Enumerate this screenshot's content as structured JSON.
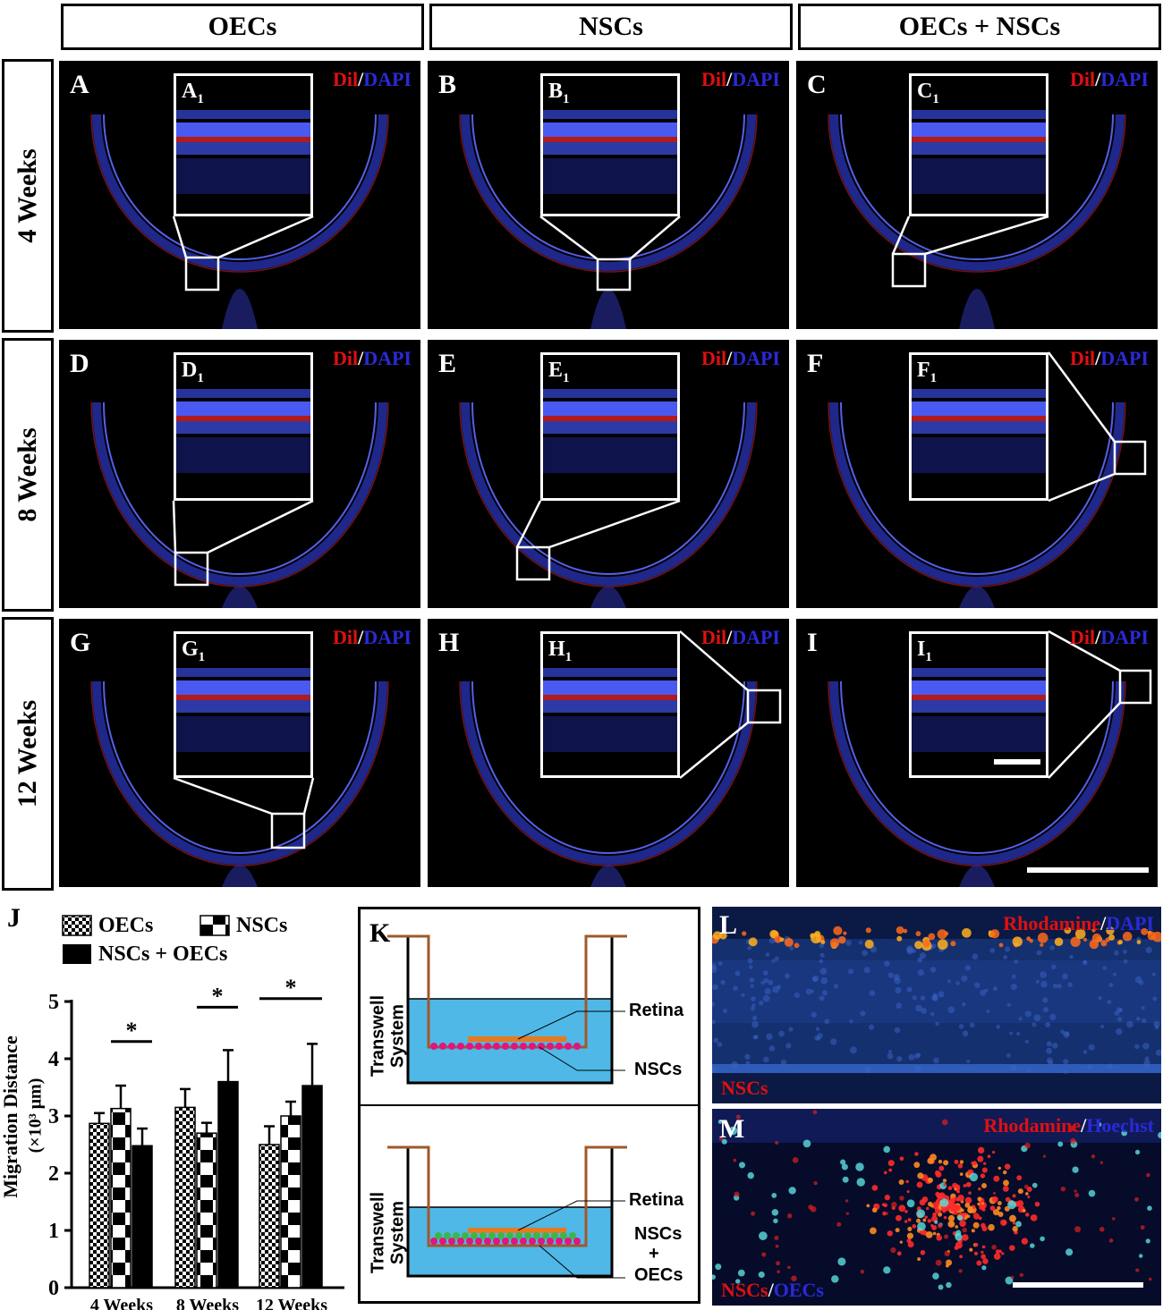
{
  "columns": [
    "OECs",
    "NSCs",
    "OECs + NSCs"
  ],
  "rows": [
    "4 Weeks",
    "8 Weeks",
    "12 Weeks"
  ],
  "stain": {
    "red": "Dil",
    "sep": "/",
    "blue": "DAPI"
  },
  "panels": [
    {
      "label": "A",
      "inset": "A",
      "sub": "1"
    },
    {
      "label": "B",
      "inset": "B",
      "sub": "1"
    },
    {
      "label": "C",
      "inset": "C",
      "sub": "1"
    },
    {
      "label": "D",
      "inset": "D",
      "sub": "1"
    },
    {
      "label": "E",
      "inset": "E",
      "sub": "1"
    },
    {
      "label": "F",
      "inset": "F",
      "sub": "1"
    },
    {
      "label": "G",
      "inset": "G",
      "sub": "1"
    },
    {
      "label": "H",
      "inset": "H",
      "sub": "1"
    },
    {
      "label": "I",
      "inset": "I",
      "sub": "1"
    }
  ],
  "panel_j": {
    "label": "J",
    "legend": [
      "OECs",
      "NSCs",
      "NSCs + OECs"
    ],
    "chart_data": {
      "type": "bar",
      "categories": [
        "4 Weeks",
        "8 Weeks",
        "12 Weeks"
      ],
      "series": [
        {
          "name": "OECs",
          "values": [
            2.87,
            3.15,
            2.5
          ],
          "errors": [
            0.18,
            0.32,
            0.32
          ],
          "pattern": "checker"
        },
        {
          "name": "NSCs",
          "values": [
            3.13,
            2.7,
            3.0
          ],
          "errors": [
            0.4,
            0.18,
            0.25
          ],
          "pattern": "block"
        },
        {
          "name": "NSCs + OECs",
          "values": [
            2.48,
            3.6,
            3.53
          ],
          "errors": [
            0.3,
            0.55,
            0.73
          ],
          "pattern": "solid"
        }
      ],
      "ylabel_line1": "Migration Distance",
      "ylabel_line2": "(×10³ μm)",
      "ylim": [
        0,
        5
      ],
      "yticks": [
        "0",
        "1",
        "2",
        "3",
        "4",
        "5"
      ],
      "significance": "*"
    }
  },
  "panel_k": {
    "label": "K",
    "system_label_1": "Transwell",
    "system_label_2": "System",
    "top": {
      "retina": "Retina",
      "cells": "NSCs"
    },
    "bottom": {
      "retina": "Retina",
      "cells_1": "NSCs",
      "cells_2": "+",
      "cells_3": "OECs"
    },
    "colors": {
      "medium": "#4fb8e6",
      "retina": "#e87a1e",
      "nsc": "#e0157f",
      "oec": "#3cb54a",
      "wall": "#a0582a"
    }
  },
  "panel_l": {
    "label": "L",
    "stain_red": "Rhodamine",
    "sep": "/",
    "stain_blue": "DAPI",
    "caption": "NSCs"
  },
  "panel_m": {
    "label": "M",
    "stain_red": "Rhodamine",
    "sep": "/",
    "stain_blue": "Hoechst",
    "caption_red": "NSCs",
    "caption_sep": "/",
    "caption_blue": "OECs"
  }
}
